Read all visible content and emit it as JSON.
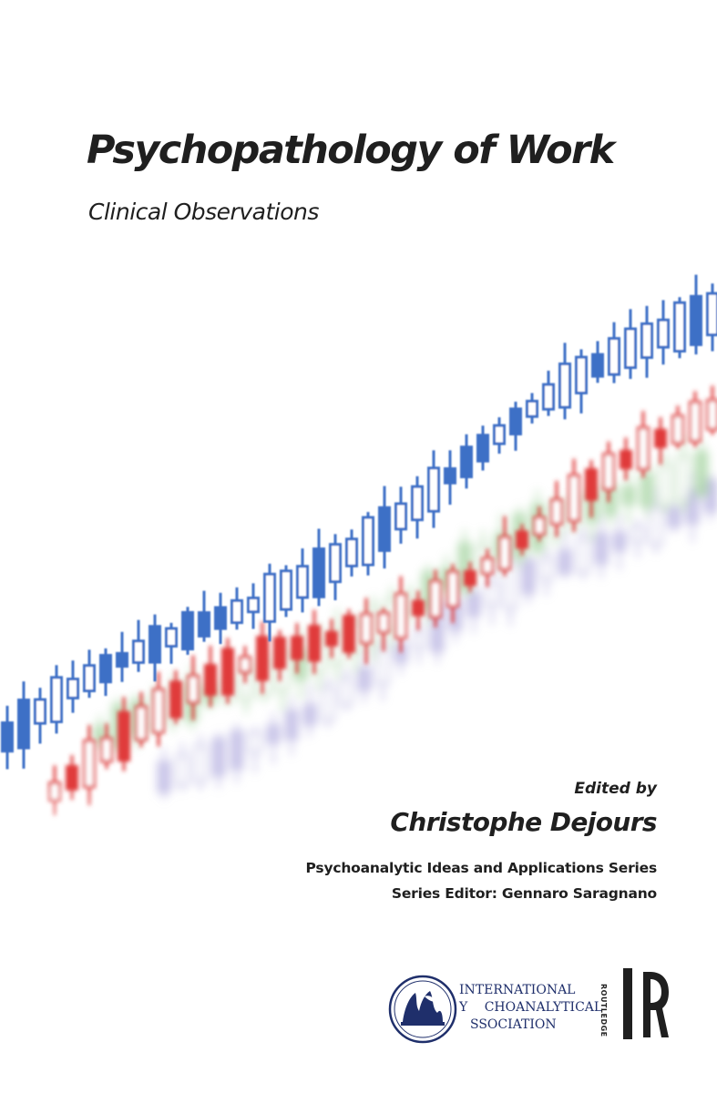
{
  "cover": {
    "title": "Psychopathology of Work",
    "subtitle": "Clinical Observations",
    "edited_by": "Edited by",
    "editor": "Christophe Dejours",
    "series": "Psychoanalytic Ideas and Applications Series",
    "series_editor": "Series Editor: Gennaro Saragnano"
  },
  "publisher": {
    "ipa_line1": "INTERNATIONAL",
    "ipa_line2": "Y",
    "ipa_line2b": "CHOANALYTICAL",
    "ipa_line3": "SSOCIATION",
    "routledge_word": "ROUTLEDGE",
    "routledge_letter": "R"
  },
  "colors": {
    "blue": "#3d6fc6",
    "red": "#e03a3a",
    "green": "#8fc98a",
    "purple": "#9d96d6",
    "text": "#1f1f1f",
    "ipa_navy": "#1f2f6b"
  },
  "icons": {
    "ipa_seal": "ipa-seal-icon",
    "routledge": "routledge-logo-icon"
  }
}
